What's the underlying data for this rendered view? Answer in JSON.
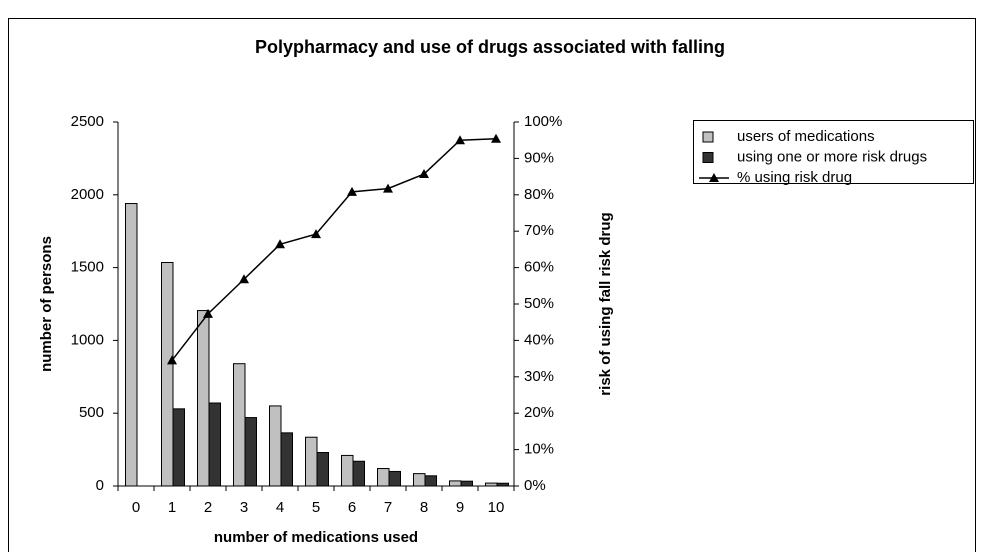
{
  "chart_data": {
    "type": "bar_line",
    "title": "Polypharmacy and use of drugs associated with falling",
    "x_label": "number of medications used",
    "y_label": "number of persons",
    "y2_label": "risk of using fall risk drug",
    "categories": [
      "0",
      "1",
      "2",
      "3",
      "4",
      "5",
      "6",
      "7",
      "8",
      "9",
      "10"
    ],
    "series": [
      {
        "name": "users of medications",
        "type": "bar",
        "color": "#c0c0c0",
        "values": [
          1940,
          1535,
          1205,
          840,
          550,
          335,
          210,
          120,
          85,
          35,
          20
        ]
      },
      {
        "name": "using one or more risk drugs",
        "type": "bar",
        "color": "#333333",
        "values": [
          null,
          530,
          570,
          470,
          365,
          230,
          170,
          100,
          70,
          33,
          19
        ]
      },
      {
        "name": "% using risk drug",
        "type": "line",
        "axis": "y2",
        "color": "#000000",
        "values": [
          null,
          34.5,
          47.3,
          56.8,
          66.4,
          69.2,
          80.8,
          81.7,
          85.7,
          95,
          95.4
        ]
      }
    ],
    "ylim": [
      0,
      2500
    ],
    "yticks": [
      0,
      500,
      1000,
      1500,
      2000,
      2500
    ],
    "y2lim": [
      0,
      100
    ],
    "y2ticks": [
      {
        "value": 0,
        "label": "0%"
      },
      {
        "value": 10,
        "label": "10%"
      },
      {
        "value": 20,
        "label": "20%"
      },
      {
        "value": 30,
        "label": "30%"
      },
      {
        "value": 40,
        "label": "40%"
      },
      {
        "value": 50,
        "label": "50%"
      },
      {
        "value": 60,
        "label": "60%"
      },
      {
        "value": 70,
        "label": "70%"
      },
      {
        "value": 80,
        "label": "80%"
      },
      {
        "value": 90,
        "label": "90%"
      },
      {
        "value": 100,
        "label": "100%"
      }
    ],
    "legend": "right"
  }
}
